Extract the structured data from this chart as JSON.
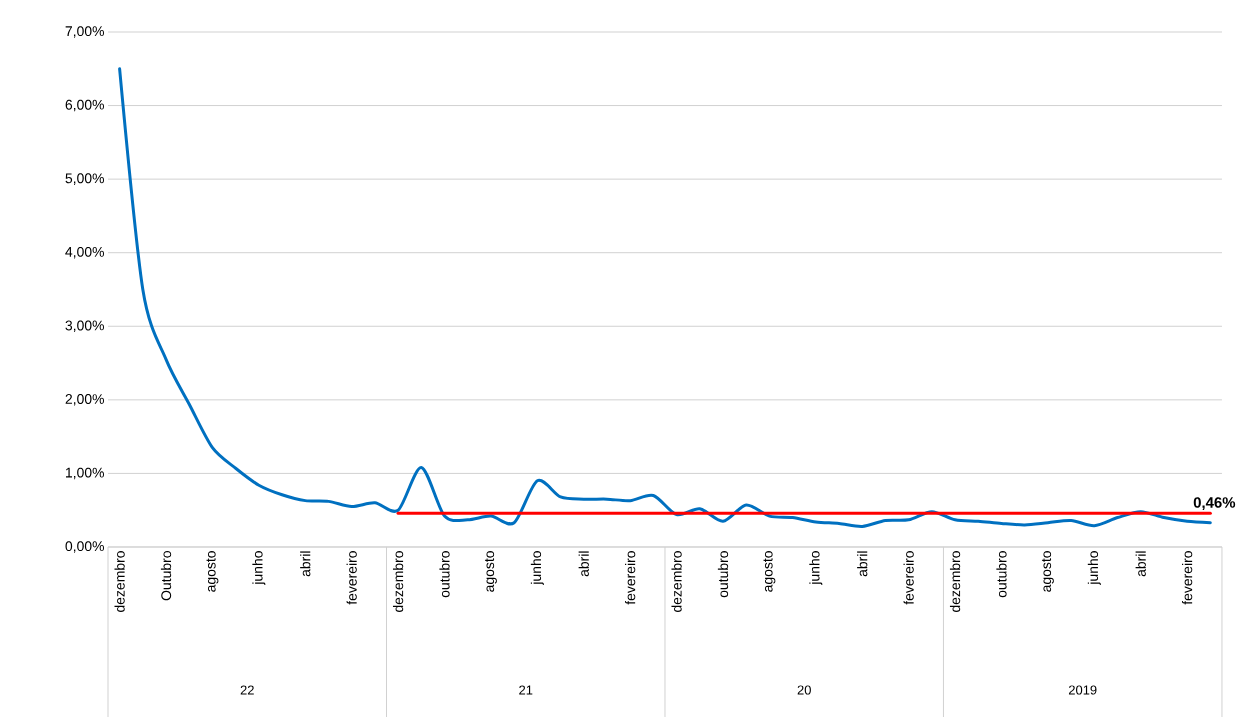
{
  "chart_data": {
    "type": "line",
    "categories": [
      "dezembro",
      null,
      "Outubro",
      null,
      "agosto",
      null,
      "junho",
      null,
      "abril",
      null,
      "fevereiro",
      null,
      "dezembro",
      null,
      "outubro",
      null,
      "agosto",
      null,
      "junho",
      null,
      "abril",
      null,
      "fevereiro",
      null,
      "dezembro",
      null,
      "outubro",
      null,
      "agosto",
      null,
      "junho",
      null,
      "abril",
      null,
      "fevereiro",
      null,
      "dezembro",
      null,
      "outubro",
      null,
      "agosto",
      null,
      "junho",
      null,
      "abril",
      null,
      "fevereiro",
      null
    ],
    "series": [
      {
        "color": "#0070c0",
        "values": [
          6.5,
          3.5,
          2.55,
          1.94,
          1.35,
          1.07,
          0.84,
          0.71,
          0.63,
          0.62,
          0.55,
          0.6,
          0.5,
          1.08,
          0.42,
          0.37,
          0.42,
          0.33,
          0.9,
          0.68,
          0.65,
          0.65,
          0.63,
          0.7,
          0.44,
          0.52,
          0.35,
          0.57,
          0.42,
          0.4,
          0.34,
          0.32,
          0.28,
          0.36,
          0.37,
          0.48,
          0.37,
          0.35,
          0.32,
          0.3,
          0.33,
          0.36,
          0.29,
          0.4,
          0.48,
          0.4,
          0.35,
          0.33
        ]
      },
      {
        "color": "#ff0000",
        "values": [
          null,
          null,
          null,
          null,
          null,
          null,
          null,
          null,
          null,
          null,
          null,
          null,
          0.46,
          0.46,
          0.46,
          0.46,
          0.46,
          0.46,
          0.46,
          0.46,
          0.46,
          0.46,
          0.46,
          0.46,
          0.46,
          0.46,
          0.46,
          0.46,
          0.46,
          0.46,
          0.46,
          0.46,
          0.46,
          0.46,
          0.46,
          0.46,
          0.46,
          0.46,
          0.46,
          0.46,
          0.46,
          0.46,
          0.46,
          0.46,
          0.46,
          0.46,
          0.46,
          0.46
        ]
      }
    ],
    "ylim": [
      0,
      7
    ],
    "yticks": [
      {
        "value": 0,
        "label": "0,00%"
      },
      {
        "value": 1,
        "label": "1,00%"
      },
      {
        "value": 2,
        "label": "2,00%"
      },
      {
        "value": 3,
        "label": "3,00%"
      },
      {
        "value": 4,
        "label": "4,00%"
      },
      {
        "value": 5,
        "label": "5,00%"
      },
      {
        "value": 6,
        "label": "6,00%"
      },
      {
        "value": 7,
        "label": "7,00%"
      }
    ],
    "grid": "y",
    "marker": "none",
    "line_style": "solid",
    "annotations": [
      {
        "text": "**0,46%**",
        "y": 0.46
      },
      "22",
      "21",
      "20",
      "2019"
    ]
  }
}
